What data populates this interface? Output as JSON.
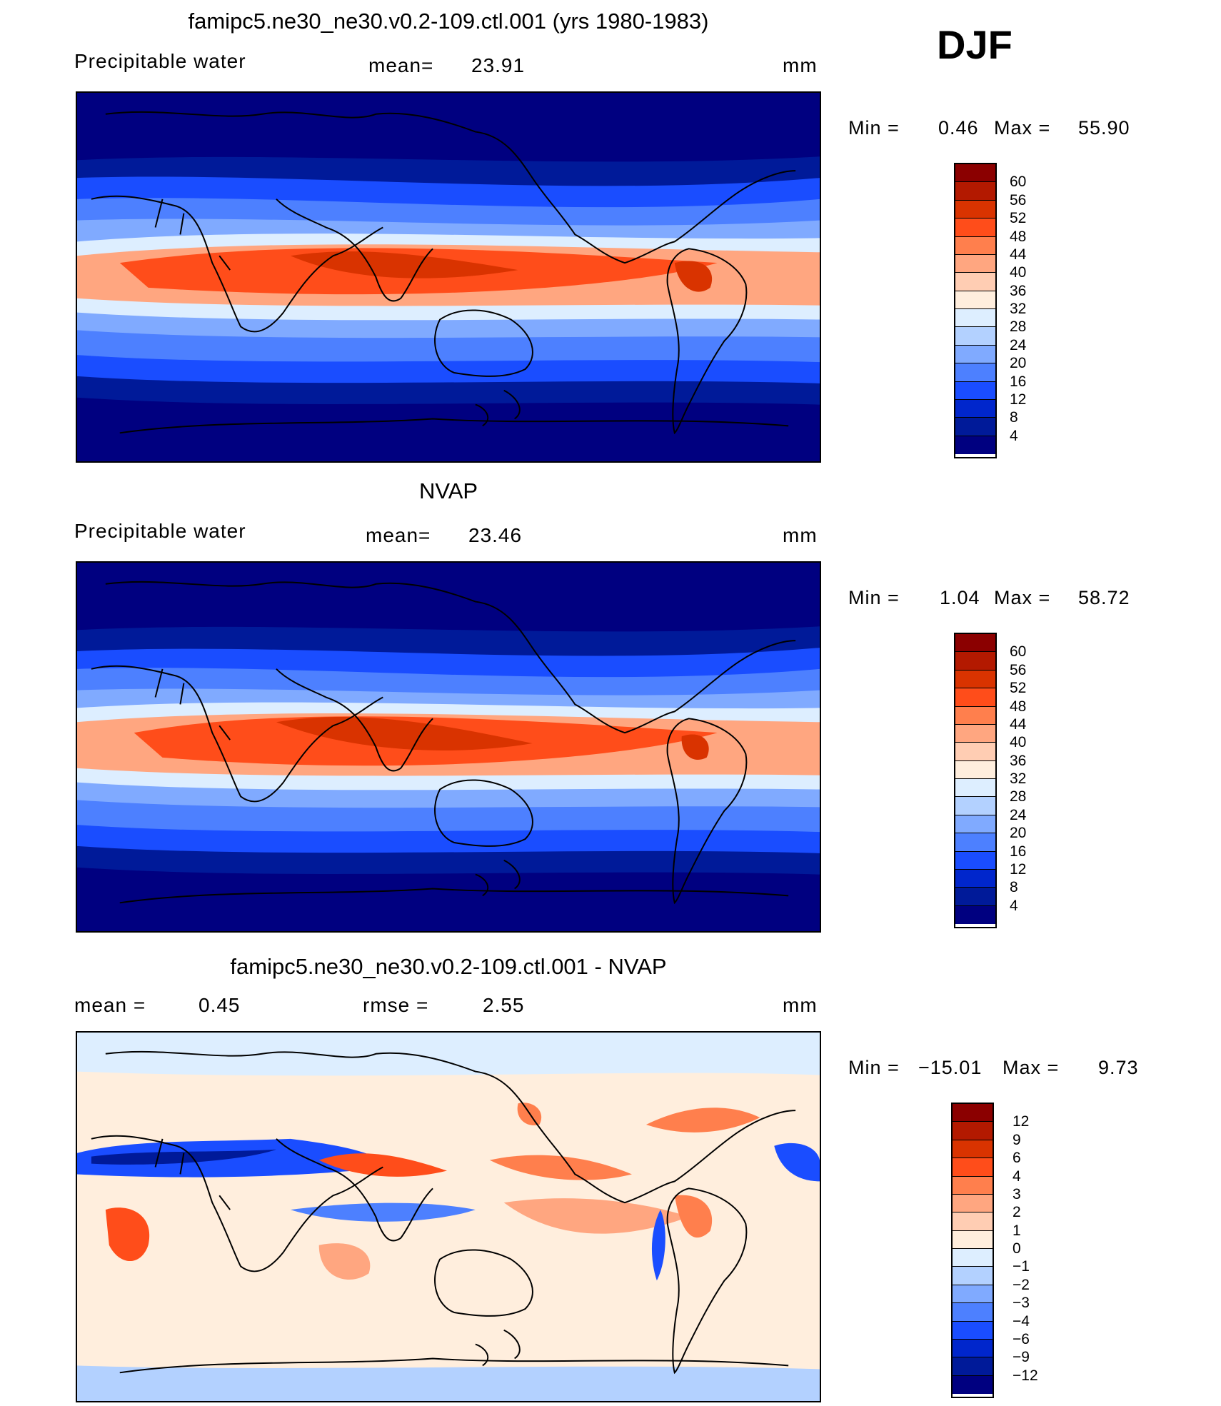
{
  "season": "DJF",
  "panels": [
    {
      "title": "famipc5.ne30_ne30.v0.2-109.ctl.001 (yrs 1980-1983)",
      "left_label": "Precipitable  water",
      "mid_label": "mean=",
      "mid_value": "23.91",
      "units": "mm",
      "min_label": "Min  =",
      "min_value": "0.46",
      "max_label": "Max  =",
      "max_value": "55.90",
      "colorbar": {
        "labels": [
          "60",
          "56",
          "52",
          "48",
          "44",
          "40",
          "36",
          "32",
          "28",
          "24",
          "20",
          "16",
          "12",
          "8",
          "4"
        ],
        "colors": [
          "#8b0000",
          "#b31900",
          "#d93300",
          "#ff4d1a",
          "#ff7f4d",
          "#ffa680",
          "#ffcdb3",
          "#ffeedd",
          "#ddeeff",
          "#b3d1ff",
          "#80aaff",
          "#4d80ff",
          "#1a4dff",
          "#0026cc",
          "#001a99",
          "#000080"
        ]
      }
    },
    {
      "title": "NVAP",
      "left_label": "Precipitable  water",
      "mid_label": "mean=",
      "mid_value": "23.46",
      "units": "mm",
      "min_label": "Min  =",
      "min_value": "1.04",
      "max_label": "Max  =",
      "max_value": "58.72",
      "colorbar": {
        "labels": [
          "60",
          "56",
          "52",
          "48",
          "44",
          "40",
          "36",
          "32",
          "28",
          "24",
          "20",
          "16",
          "12",
          "8",
          "4"
        ],
        "colors": [
          "#8b0000",
          "#b31900",
          "#d93300",
          "#ff4d1a",
          "#ff7f4d",
          "#ffa680",
          "#ffcdb3",
          "#ffeedd",
          "#ddeeff",
          "#b3d1ff",
          "#80aaff",
          "#4d80ff",
          "#1a4dff",
          "#0026cc",
          "#001a99",
          "#000080"
        ]
      }
    },
    {
      "title": "famipc5.ne30_ne30.v0.2-109.ctl.001 - NVAP",
      "left_label": "mean  =",
      "left_value": "0.45",
      "mid_label": "rmse  =",
      "mid_value": "2.55",
      "units": "mm",
      "min_label": "Min  =",
      "min_value": "−15.01",
      "max_label": "Max  =",
      "max_value": "9.73",
      "colorbar": {
        "labels": [
          "12",
          "9",
          "6",
          "4",
          "3",
          "2",
          "1",
          "0",
          "−1",
          "−2",
          "−3",
          "−4",
          "−6",
          "−9",
          "−12"
        ],
        "colors": [
          "#8b0000",
          "#b31900",
          "#d93300",
          "#ff4d1a",
          "#ff7f4d",
          "#ffa680",
          "#ffcdb3",
          "#ffeedd",
          "#ddeeff",
          "#b3d1ff",
          "#80aaff",
          "#4d80ff",
          "#1a4dff",
          "#0026cc",
          "#001a99",
          "#000080"
        ]
      }
    }
  ]
}
